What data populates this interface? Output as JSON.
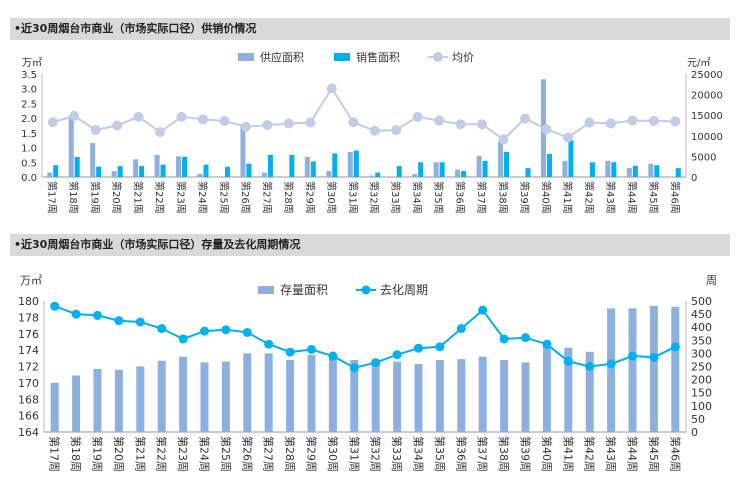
{
  "chart_data": [
    {
      "type": "bar",
      "title": "•近30周烟台市商业（市场实际口径）供销价情况",
      "categories": [
        "第17周",
        "第18周",
        "第19周",
        "第20周",
        "第21周",
        "第22周",
        "第23周",
        "第24周",
        "第25周",
        "第26周",
        "第27周",
        "第28周",
        "第29周",
        "第30周",
        "第31周",
        "第32周",
        "第33周",
        "第34周",
        "第35周",
        "第36周",
        "第37周",
        "第38周",
        "第39周",
        "第40周",
        "第41周",
        "第42周",
        "第43周",
        "第44周",
        "第45周",
        "第46周"
      ],
      "y_unit_left": "万㎡",
      "y_unit_right": "元/㎡",
      "ylim": [
        0,
        3.5
      ],
      "y2lim": [
        0,
        25000
      ],
      "yticks": [
        "0.0",
        "0.5",
        "1.0",
        "1.5",
        "2.0",
        "2.5",
        "3.0",
        "3.5"
      ],
      "y2ticks": [
        "0",
        "5000",
        "10000",
        "15000",
        "20000",
        "25000"
      ],
      "legend_position": "top-center",
      "series": [
        {
          "name": "供应面积",
          "kind": "bar",
          "color": "#8eb0df",
          "values": [
            0.15,
            2.05,
            1.15,
            0.2,
            0.6,
            0.75,
            0.7,
            0.1,
            0.0,
            1.8,
            0.15,
            0.0,
            0.68,
            0.2,
            0.85,
            0.05,
            0.0,
            0.1,
            0.5,
            0.25,
            0.72,
            1.2,
            0.0,
            3.32,
            0.55,
            0.0,
            0.55,
            0.3,
            0.45,
            0.0
          ]
        },
        {
          "name": "销售面积",
          "kind": "bar",
          "color": "#00b0f0",
          "values": [
            0.4,
            0.68,
            0.35,
            0.37,
            0.37,
            0.42,
            0.68,
            0.42,
            0.35,
            0.45,
            0.75,
            0.75,
            0.53,
            0.8,
            0.9,
            0.15,
            0.37,
            0.5,
            0.5,
            0.2,
            0.55,
            0.85,
            0.3,
            0.78,
            1.25,
            0.5,
            0.5,
            0.38,
            0.4,
            0.3
          ]
        },
        {
          "name": "均价",
          "kind": "line",
          "axis": "right",
          "color": "#bfcde6",
          "values": [
            13300,
            14800,
            11400,
            12500,
            14600,
            10900,
            14600,
            14000,
            13600,
            12200,
            12600,
            13000,
            13200,
            21500,
            13300,
            11200,
            11400,
            14600,
            13700,
            12800,
            12800,
            9100,
            14200,
            11600,
            9600,
            13200,
            13000,
            13700,
            13600,
            13500
          ]
        }
      ]
    },
    {
      "type": "bar",
      "title": "•近30周烟台市商业（市场实际口径）存量及去化周期情况",
      "categories": [
        "第17周",
        "第18周",
        "第19周",
        "第20周",
        "第21周",
        "第22周",
        "第23周",
        "第24周",
        "第25周",
        "第26周",
        "第27周",
        "第28周",
        "第29周",
        "第30周",
        "第31周",
        "第32周",
        "第33周",
        "第34周",
        "第35周",
        "第36周",
        "第37周",
        "第38周",
        "第39周",
        "第40周",
        "第41周",
        "第42周",
        "第43周",
        "第44周",
        "第45周",
        "第46周"
      ],
      "y_unit_left": "万㎡",
      "y_unit_right": "周",
      "ylim": [
        164,
        180
      ],
      "y2lim": [
        0,
        500
      ],
      "yticks": [
        "164",
        "166",
        "168",
        "170",
        "172",
        "174",
        "176",
        "178",
        "180"
      ],
      "y2ticks": [
        "0",
        "50",
        "100",
        "150",
        "200",
        "250",
        "300",
        "350",
        "400",
        "450",
        "500"
      ],
      "legend_position": "top-center",
      "series": [
        {
          "name": "存量面积",
          "kind": "bar",
          "color": "#8eb0df",
          "values": [
            170.0,
            170.9,
            171.7,
            171.6,
            172.0,
            172.7,
            173.2,
            172.5,
            172.6,
            173.6,
            173.6,
            172.8,
            173.4,
            173.4,
            172.8,
            172.6,
            172.6,
            172.3,
            172.8,
            172.9,
            173.2,
            172.8,
            172.5,
            174.9,
            174.3,
            173.8,
            179.1,
            179.1,
            179.4,
            179.3
          ]
        },
        {
          "name": "去化周期",
          "kind": "line",
          "axis": "right",
          "color": "#00b0f0",
          "values": [
            480,
            450,
            445,
            425,
            420,
            395,
            355,
            385,
            390,
            380,
            335,
            305,
            315,
            290,
            245,
            265,
            295,
            320,
            325,
            395,
            465,
            355,
            360,
            335,
            270,
            250,
            260,
            290,
            285,
            325
          ]
        }
      ]
    }
  ]
}
